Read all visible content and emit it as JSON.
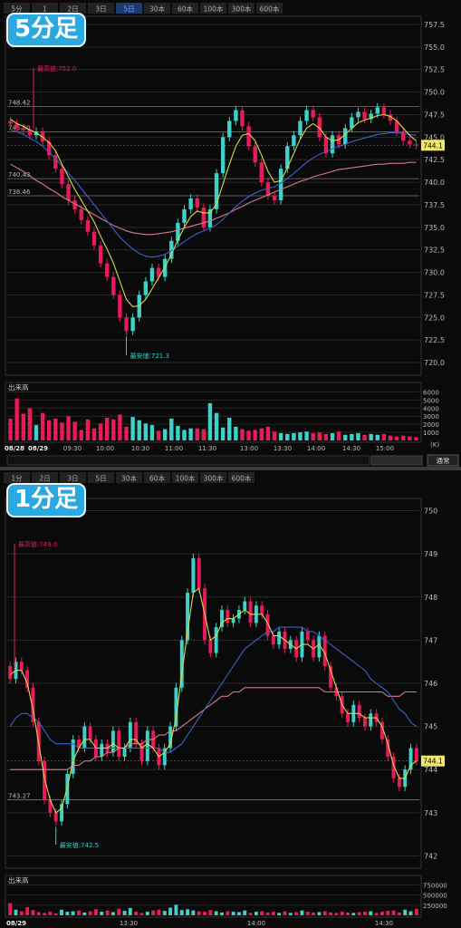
{
  "panels": [
    {
      "id": "top",
      "title": "5分足",
      "tabs": [
        "5分",
        "1",
        "2日",
        "3日",
        "5日",
        "30本",
        "60本",
        "100本",
        "300本",
        "600本"
      ],
      "active_tab": 4,
      "volume_label": "出来高",
      "price_tag": "744.1",
      "hi_label": "最高値:752.0",
      "lo_label": "最安値:721.3",
      "left_levels": [
        "748.42",
        "745.60",
        "740.43",
        "738.46"
      ],
      "left_level_values": [
        748.4,
        745.6,
        740.4,
        738.5
      ],
      "date_labels": [
        "08/28",
        "08/29"
      ],
      "control_label": "通常",
      "colors": {
        "up": "#3ed1c7",
        "down": "#e91a58",
        "ma_short": "#d8d84a",
        "ma_mid": "#3b62c8",
        "ma_long": "#d77a8a"
      }
    },
    {
      "id": "bot",
      "title": "1分足",
      "tabs": [
        "1分",
        "2日",
        "3日",
        "5日",
        "30本",
        "60本",
        "100本",
        "300本",
        "600本"
      ],
      "active_tab": -1,
      "volume_label": "出来高",
      "price_tag": "744.1",
      "hi_label": "最高値:749.0",
      "lo_label": "最安値:742.5",
      "left_levels": [
        "743.27"
      ],
      "left_level_values": [
        743.3
      ],
      "date_labels": [
        "08/29"
      ],
      "colors": {
        "up": "#3ed1c7",
        "down": "#e91a58",
        "ma_short": "#d8d84a",
        "ma_mid": "#3b62c8",
        "ma_long": "#d77a8a"
      }
    }
  ],
  "chart_data": [
    {
      "type": "candlestick",
      "title": "5分足",
      "y_ticks": [
        "757.5",
        "755.0",
        "752.5",
        "750.0",
        "747.5",
        "745.0",
        "742.5",
        "740.0",
        "737.5",
        "735.0",
        "732.5",
        "730.0",
        "727.5",
        "725.0",
        "722.5",
        "720.0"
      ],
      "ylim": [
        719,
        758
      ],
      "x_ticks": [
        "08/28",
        "08/29",
        "09:30",
        "10:00",
        "10:30",
        "11:00",
        "11:30",
        "13:00",
        "13:30",
        "14:00",
        "14:30",
        "15:00"
      ],
      "volume_ticks": [
        "6000",
        "5000",
        "4000",
        "3000",
        "2000",
        "1000",
        "(K)"
      ],
      "volume_ylim": [
        0,
        6500
      ],
      "close": [
        746.5,
        746.0,
        745.8,
        745.2,
        745.6,
        744.5,
        743.0,
        741.5,
        739.8,
        738.0,
        737.0,
        735.8,
        734.5,
        733.0,
        731.0,
        729.5,
        727.5,
        725.0,
        723.5,
        725.0,
        727.5,
        729.0,
        730.5,
        729.5,
        731.5,
        733.5,
        735.5,
        737.0,
        738.2,
        737.2,
        735.0,
        737.0,
        741.0,
        745.0,
        746.8,
        748.0,
        746.2,
        744.0,
        742.2,
        740.0,
        738.5,
        738.0,
        741.5,
        744.0,
        745.2,
        746.8,
        748.0,
        747.2,
        745.0,
        743.2,
        745.2,
        744.2,
        746.0,
        747.2,
        747.8,
        747.0,
        747.6,
        748.3,
        747.5,
        746.8,
        745.6,
        744.6,
        744.2,
        744.1
      ],
      "volume": [
        2700,
        5200,
        3300,
        4000,
        1900,
        3400,
        2500,
        2700,
        2200,
        3000,
        2300,
        1300,
        2600,
        1500,
        2100,
        2800,
        2600,
        3200,
        1700,
        2900,
        2500,
        2100,
        1900,
        1200,
        1400,
        2700,
        1800,
        1300,
        1500,
        1500,
        1400,
        4600,
        3400,
        1600,
        2800,
        1700,
        1400,
        1200,
        1300,
        1500,
        1700,
        1100,
        900,
        800,
        900,
        1000,
        1100,
        900,
        1000,
        800,
        900,
        1100,
        700,
        800,
        900,
        700,
        800,
        700,
        800,
        600,
        500,
        600,
        500,
        400
      ],
      "ma_short": [
        747.0,
        746.5,
        746.2,
        745.8,
        745.5,
        745.0,
        744.4,
        743.5,
        742.0,
        740.6,
        739.2,
        738.0,
        736.8,
        735.6,
        734.0,
        732.6,
        731.0,
        729.0,
        727.0,
        726.2,
        726.3,
        727.0,
        728.2,
        729.4,
        730.6,
        732.0,
        733.6,
        735.0,
        736.2,
        736.8,
        736.6,
        736.6,
        737.6,
        739.8,
        742.0,
        744.0,
        745.2,
        745.4,
        744.6,
        743.0,
        741.2,
        740.0,
        740.2,
        741.6,
        743.2,
        744.8,
        746.0,
        746.5,
        746.0,
        745.0,
        744.6,
        744.7,
        745.3,
        746.0,
        746.6,
        746.9,
        747.1,
        747.4,
        747.5,
        747.3,
        746.8,
        746.0,
        745.2,
        744.6
      ],
      "ma_mid": [
        745.8,
        745.6,
        745.3,
        744.9,
        744.5,
        744.0,
        743.3,
        742.6,
        741.8,
        741.0,
        740.2,
        739.3,
        738.4,
        737.5,
        736.6,
        735.7,
        734.8,
        733.9,
        733.2,
        732.6,
        732.1,
        731.8,
        731.7,
        731.8,
        732.0,
        732.4,
        732.9,
        733.4,
        733.9,
        734.3,
        734.6,
        734.9,
        735.3,
        735.9,
        736.6,
        737.3,
        737.9,
        738.4,
        738.8,
        739.1,
        739.3,
        739.5,
        739.9,
        740.4,
        741.0,
        741.6,
        742.2,
        742.7,
        743.1,
        743.4,
        743.7,
        744.0,
        744.2,
        744.5,
        744.7,
        744.9,
        745.1,
        745.3,
        745.4,
        745.5,
        745.5,
        745.4,
        745.3,
        745.2
      ],
      "ma_long": [
        742.0,
        741.6,
        741.2,
        740.7,
        740.2,
        739.8,
        739.3,
        738.9,
        738.4,
        738.0,
        737.6,
        737.2,
        736.8,
        736.4,
        736.0,
        735.6,
        735.2,
        734.9,
        734.6,
        734.4,
        734.3,
        734.2,
        734.2,
        734.3,
        734.4,
        734.5,
        734.7,
        734.9,
        735.1,
        735.3,
        735.5,
        735.7,
        736.0,
        736.3,
        736.6,
        737.0,
        737.3,
        737.7,
        738.0,
        738.3,
        738.6,
        738.9,
        739.2,
        739.5,
        739.8,
        740.1,
        740.3,
        740.6,
        740.8,
        741.0,
        741.2,
        741.4,
        741.5,
        741.6,
        741.7,
        741.8,
        741.9,
        742.0,
        742.0,
        742.1,
        742.1,
        742.1,
        742.2,
        742.2
      ]
    },
    {
      "type": "candlestick",
      "title": "1分足",
      "y_ticks": [
        "750",
        "749",
        "748",
        "747",
        "746",
        "745",
        "744",
        "743",
        "742"
      ],
      "ylim": [
        741.8,
        750.2
      ],
      "x_ticks": [
        "08/29",
        "13:30",
        "14:00",
        "14:30"
      ],
      "volume_ticks": [
        "750000",
        "500000",
        "250000"
      ],
      "volume_ylim": [
        0,
        850000
      ],
      "close": [
        746.1,
        746.5,
        746.3,
        745.9,
        745.1,
        744.2,
        743.3,
        743.0,
        742.8,
        743.2,
        743.9,
        744.7,
        744.5,
        745.0,
        744.7,
        744.3,
        744.6,
        744.4,
        744.9,
        744.3,
        744.5,
        745.1,
        744.6,
        744.2,
        744.9,
        744.5,
        744.1,
        744.5,
        745.0,
        745.9,
        747.0,
        748.1,
        748.9,
        748.2,
        747.0,
        746.7,
        747.3,
        747.7,
        747.4,
        747.5,
        747.7,
        747.9,
        747.4,
        747.8,
        747.6,
        747.1,
        746.9,
        747.2,
        746.8,
        747.0,
        746.6,
        747.2,
        747.0,
        746.6,
        747.1,
        746.4,
        745.9,
        745.7,
        745.3,
        745.1,
        745.5,
        745.2,
        745.0,
        745.3,
        745.1,
        744.7,
        744.3,
        743.8,
        743.6,
        744.0,
        744.5,
        744.2
      ],
      "volume": [
        300000,
        140000,
        100000,
        200000,
        130000,
        80000,
        60000,
        90000,
        50000,
        140000,
        90000,
        100000,
        120000,
        70000,
        100000,
        150000,
        90000,
        120000,
        80000,
        160000,
        110000,
        180000,
        90000,
        60000,
        90000,
        120000,
        140000,
        110000,
        190000,
        260000,
        130000,
        150000,
        120000,
        100000,
        90000,
        130000,
        100000,
        70000,
        100000,
        90000,
        80000,
        120000,
        60000,
        90000,
        100000,
        70000,
        90000,
        60000,
        100000,
        60000,
        80000,
        120000,
        90000,
        70000,
        80000,
        100000,
        70000,
        60000,
        90000,
        70000,
        60000,
        80000,
        90000,
        100000,
        60000,
        90000,
        110000,
        120000,
        70000,
        140000,
        100000,
        160000
      ],
      "ma_short": [
        746.2,
        746.3,
        746.3,
        746.0,
        745.4,
        744.6,
        743.8,
        743.3,
        743.0,
        743.1,
        743.6,
        744.2,
        744.5,
        744.7,
        744.7,
        744.5,
        744.5,
        744.5,
        744.6,
        744.5,
        744.5,
        744.7,
        744.7,
        744.5,
        744.6,
        744.5,
        744.3,
        744.4,
        744.6,
        745.2,
        746.2,
        747.2,
        748.1,
        748.2,
        747.6,
        747.0,
        747.1,
        747.4,
        747.5,
        747.5,
        747.6,
        747.7,
        747.6,
        747.6,
        747.6,
        747.4,
        747.1,
        747.1,
        747.0,
        746.9,
        746.8,
        746.9,
        746.9,
        746.8,
        746.9,
        746.7,
        746.3,
        745.9,
        745.5,
        745.3,
        745.3,
        745.3,
        745.2,
        745.2,
        745.2,
        745.0,
        744.6,
        744.1,
        743.8,
        743.8,
        744.1,
        744.2
      ],
      "ma_mid": [
        745.0,
        745.2,
        745.3,
        745.3,
        745.2,
        745.1,
        744.9,
        744.7,
        744.6,
        744.6,
        744.6,
        744.6,
        744.5,
        744.5,
        744.5,
        744.5,
        744.5,
        744.5,
        744.5,
        744.5,
        744.5,
        744.5,
        744.5,
        744.5,
        744.5,
        744.5,
        744.5,
        744.4,
        744.4,
        744.5,
        744.6,
        744.8,
        745.0,
        745.2,
        745.4,
        745.6,
        745.8,
        746.0,
        746.2,
        746.4,
        746.6,
        746.8,
        746.9,
        747.0,
        747.1,
        747.2,
        747.2,
        747.3,
        747.3,
        747.3,
        747.3,
        747.3,
        747.2,
        747.2,
        747.1,
        747.0,
        746.9,
        746.8,
        746.7,
        746.6,
        746.5,
        746.4,
        746.3,
        746.1,
        746.0,
        745.9,
        745.8,
        745.6,
        745.4,
        745.3,
        745.1,
        745.0
      ],
      "ma_long": [
        744.0,
        744.0,
        744.0,
        744.0,
        744.0,
        744.0,
        744.0,
        744.0,
        744.0,
        744.0,
        744.0,
        744.1,
        744.1,
        744.2,
        744.2,
        744.3,
        744.3,
        744.4,
        744.4,
        744.5,
        744.5,
        744.6,
        744.6,
        744.6,
        744.7,
        744.7,
        744.8,
        744.8,
        744.9,
        744.9,
        745.0,
        745.1,
        745.2,
        745.3,
        745.4,
        745.5,
        745.6,
        745.7,
        745.7,
        745.8,
        745.8,
        745.9,
        745.9,
        745.9,
        745.9,
        745.9,
        745.9,
        745.9,
        745.9,
        745.9,
        745.9,
        745.9,
        745.9,
        745.9,
        745.9,
        745.8,
        745.8,
        745.8,
        745.8,
        745.8,
        745.8,
        745.8,
        745.8,
        745.8,
        745.8,
        745.8,
        745.7,
        745.7,
        745.7,
        745.8,
        745.8,
        745.8
      ]
    }
  ]
}
